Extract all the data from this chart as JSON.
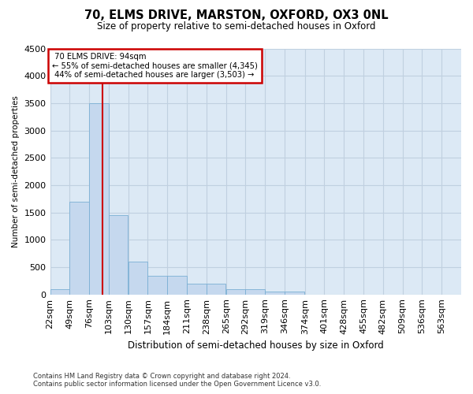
{
  "title": "70, ELMS DRIVE, MARSTON, OXFORD, OX3 0NL",
  "subtitle": "Size of property relative to semi-detached houses in Oxford",
  "xlabel": "Distribution of semi-detached houses by size in Oxford",
  "ylabel": "Number of semi-detached properties",
  "property_size": 94,
  "pct_smaller": 55,
  "pct_larger": 44,
  "count_smaller": 4345,
  "count_larger": 3503,
  "annotation_label": "70 ELMS DRIVE: 94sqm",
  "bin_edges": [
    22,
    49,
    76,
    103,
    130,
    157,
    184,
    211,
    238,
    265,
    292,
    319,
    346,
    374,
    401,
    428,
    455,
    482,
    509,
    536,
    563
  ],
  "bar_heights": [
    100,
    1700,
    3500,
    1450,
    600,
    340,
    340,
    190,
    190,
    90,
    90,
    60,
    60,
    0,
    0,
    0,
    0,
    0,
    0,
    0
  ],
  "bar_color": "#c5d8ee",
  "bar_edge_color": "#7aafd4",
  "vline_color": "#cc0000",
  "annotation_box_color": "#cc0000",
  "grid_color": "#c0d0e0",
  "background_color": "#dce9f5",
  "ylim": [
    0,
    4500
  ],
  "yticks": [
    0,
    500,
    1000,
    1500,
    2000,
    2500,
    3000,
    3500,
    4000,
    4500
  ],
  "footer_line1": "Contains HM Land Registry data © Crown copyright and database right 2024.",
  "footer_line2": "Contains public sector information licensed under the Open Government Licence v3.0."
}
